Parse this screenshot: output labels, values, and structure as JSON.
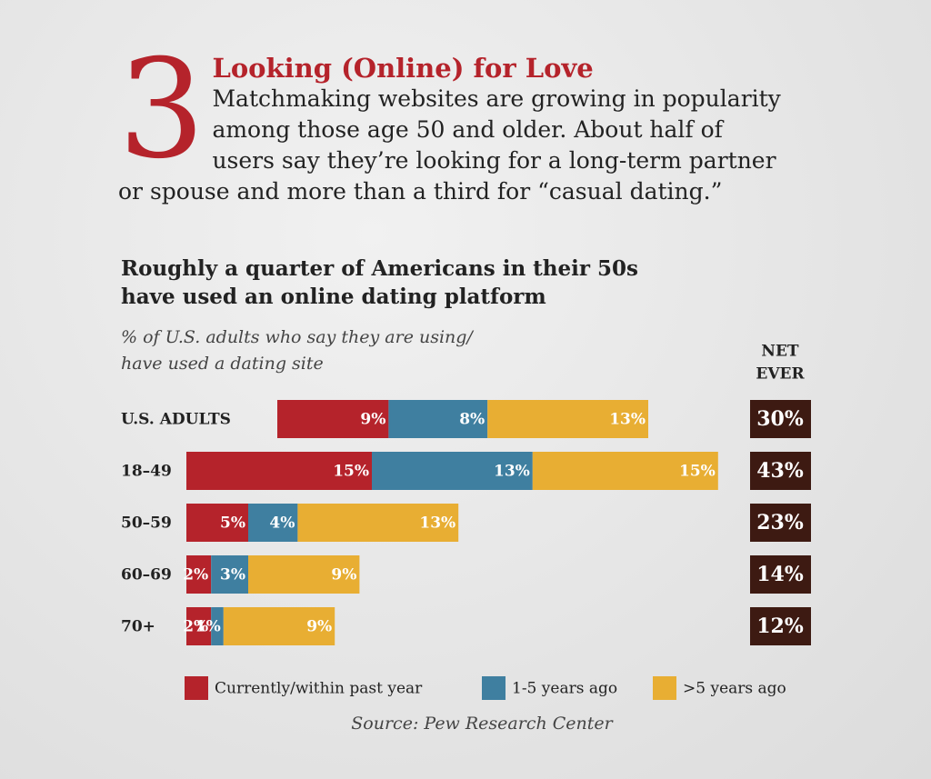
{
  "header": {
    "numeral": "3",
    "title": "Looking (Online) for Love",
    "body": "Matchmaking websites are growing in popular­ity among those age 50 and older. About half of users say they’re looking for a long-term partner or spouse and more than a third for “casual dating.”"
  },
  "chart_data": {
    "type": "stacked_bar_horizontal",
    "title": [
      "Roughly a quarter of Americans in their 50s",
      "have used an online dating platform"
    ],
    "subtitle": [
      "% of U.S. adults who say they are using/",
      "have used a dating site"
    ],
    "categories": [
      "U.S. ADULTS",
      "18–49",
      "50–59",
      "60–69",
      "70+"
    ],
    "series": [
      {
        "name": "Currently/within past year",
        "color": "#b5232b",
        "values": [
          9,
          15,
          5,
          2,
          2
        ],
        "value_labels": [
          "9%",
          "15%",
          "5%",
          "2%",
          "2%"
        ]
      },
      {
        "name": "1-5 years ago",
        "color": "#3f7fa0",
        "values": [
          8,
          13,
          4,
          3,
          1
        ],
        "value_labels": [
          "8%",
          "13%",
          "4%",
          "3%",
          "1%"
        ]
      },
      {
        "name": ">5 years ago",
        "color": "#e8ae33",
        "values": [
          13,
          15,
          13,
          9,
          9
        ],
        "value_labels": [
          "13%",
          "15%",
          "13%",
          "9%",
          "9%"
        ]
      }
    ],
    "net": {
      "title": [
        "NET",
        "EVER"
      ],
      "color": "#3d1a12",
      "values": [
        30,
        43,
        23,
        14,
        12
      ],
      "value_labels": [
        "30%",
        "43%",
        "23%",
        "14%",
        "12%"
      ]
    },
    "source": "Source: Pew Research Center"
  }
}
